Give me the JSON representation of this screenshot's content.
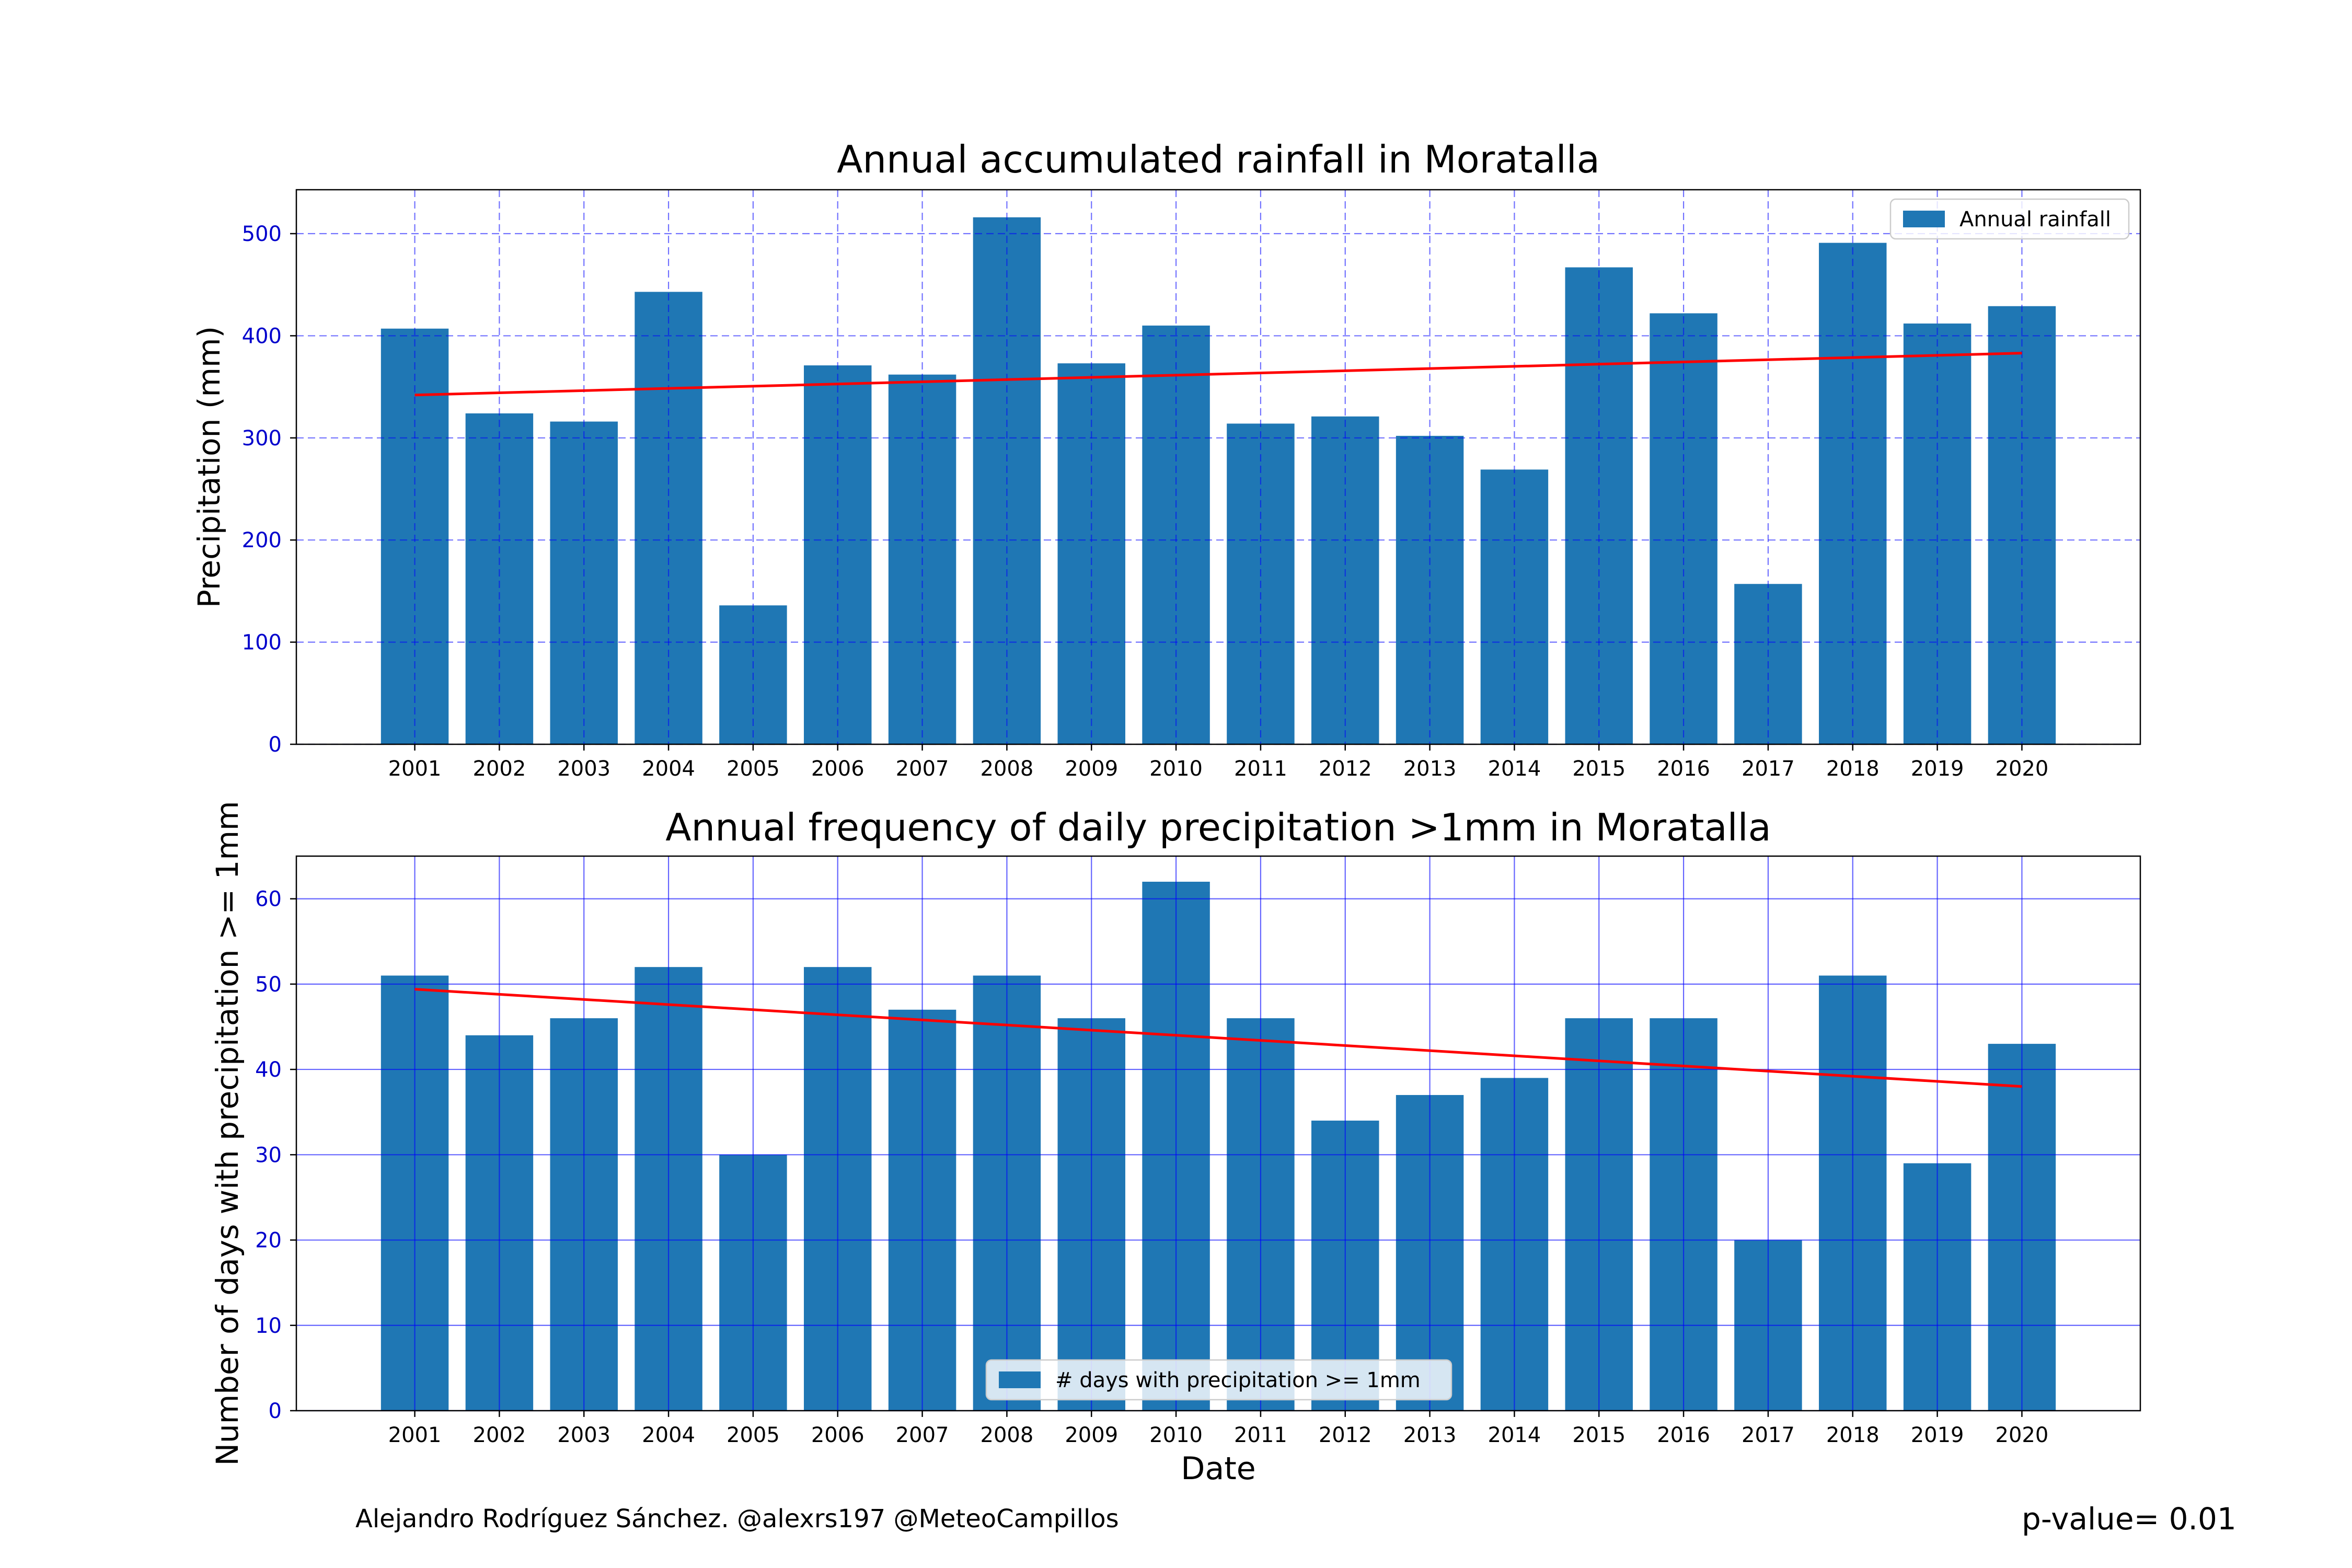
{
  "colors": {
    "bar": "#1f77b4",
    "trend": "#ff0000",
    "grid": "#0000ff",
    "ytick": "#0000cc"
  },
  "chart_data": [
    {
      "type": "bar",
      "title": "Annual accumulated rainfall in Moratalla",
      "xlabel": "",
      "ylabel": "Precipitation (mm)",
      "categories": [
        "2001",
        "2002",
        "2003",
        "2004",
        "2005",
        "2006",
        "2007",
        "2008",
        "2009",
        "2010",
        "2011",
        "2012",
        "2013",
        "2014",
        "2015",
        "2016",
        "2017",
        "2018",
        "2019",
        "2020"
      ],
      "series": [
        {
          "name": "Annual rainfall",
          "values": [
            407,
            324,
            316,
            443,
            136,
            371,
            362,
            516,
            373,
            410,
            314,
            321,
            302,
            269,
            467,
            422,
            157,
            491,
            412,
            429
          ]
        }
      ],
      "trend": {
        "start": 342,
        "end": 383
      },
      "ylim": [
        0,
        543
      ],
      "yticks": [
        0,
        100,
        200,
        300,
        400,
        500
      ],
      "grid": true,
      "grid_style": "dashed",
      "legend": "top-right"
    },
    {
      "type": "bar",
      "title": "Annual frequency of daily precipitation >1mm in Moratalla",
      "xlabel": "Date",
      "ylabel": "Number of days with precipitation >= 1mm",
      "categories": [
        "2001",
        "2002",
        "2003",
        "2004",
        "2005",
        "2006",
        "2007",
        "2008",
        "2009",
        "2010",
        "2011",
        "2012",
        "2013",
        "2014",
        "2015",
        "2016",
        "2017",
        "2018",
        "2019",
        "2020"
      ],
      "series": [
        {
          "name": "# days with precipitation >= 1mm",
          "values": [
            51,
            44,
            46,
            52,
            30,
            52,
            47,
            51,
            46,
            62,
            46,
            34,
            37,
            39,
            46,
            46,
            20,
            51,
            29,
            43
          ]
        }
      ],
      "trend": {
        "start": 49.4,
        "end": 38
      },
      "ylim": [
        0,
        65
      ],
      "yticks": [
        0,
        10,
        20,
        30,
        40,
        50,
        60
      ],
      "grid": true,
      "grid_style": "solid",
      "legend": "bottom-center"
    }
  ],
  "footer": {
    "credit": "Alejandro Rodríguez Sánchez. @alexrs197 @MeteoCampillos",
    "pvalue": "p-value= 0.01"
  }
}
